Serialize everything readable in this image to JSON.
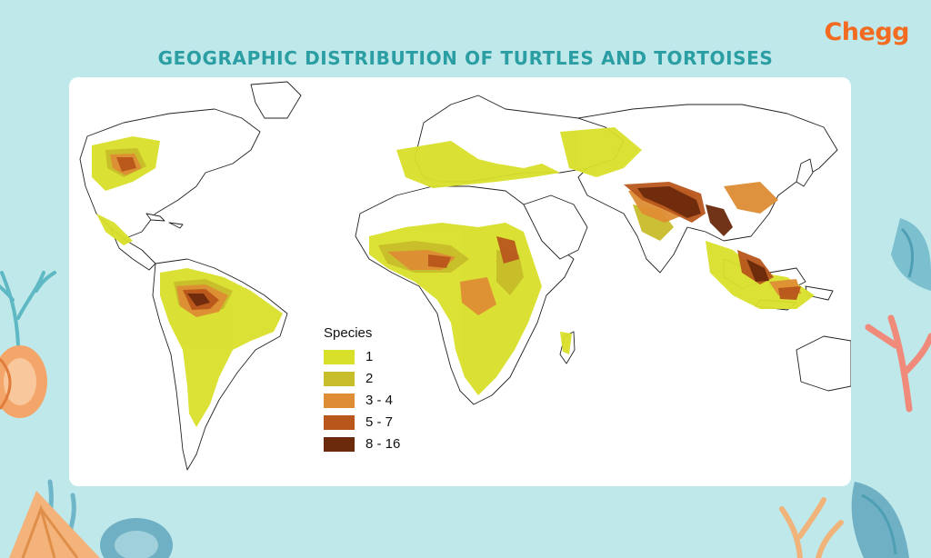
{
  "brand": {
    "logo_text": "Chegg",
    "color": "#f26b21"
  },
  "title": "GEOGRAPHIC DISTRIBUTION OF TURTLES AND TORTOISES",
  "legend": {
    "title": "Species",
    "items": [
      {
        "label": "1",
        "color": "#d9e02a"
      },
      {
        "label": "2",
        "color": "#c8bd2a"
      },
      {
        "label": "3 - 4",
        "color": "#de8d34"
      },
      {
        "label": "5 - 7",
        "color": "#b8561c"
      },
      {
        "label": "8 - 16",
        "color": "#6b2a0c"
      }
    ]
  },
  "colors": {
    "background": "#bfe8ea",
    "title": "#2a9ea3",
    "card": "#ffffff"
  }
}
